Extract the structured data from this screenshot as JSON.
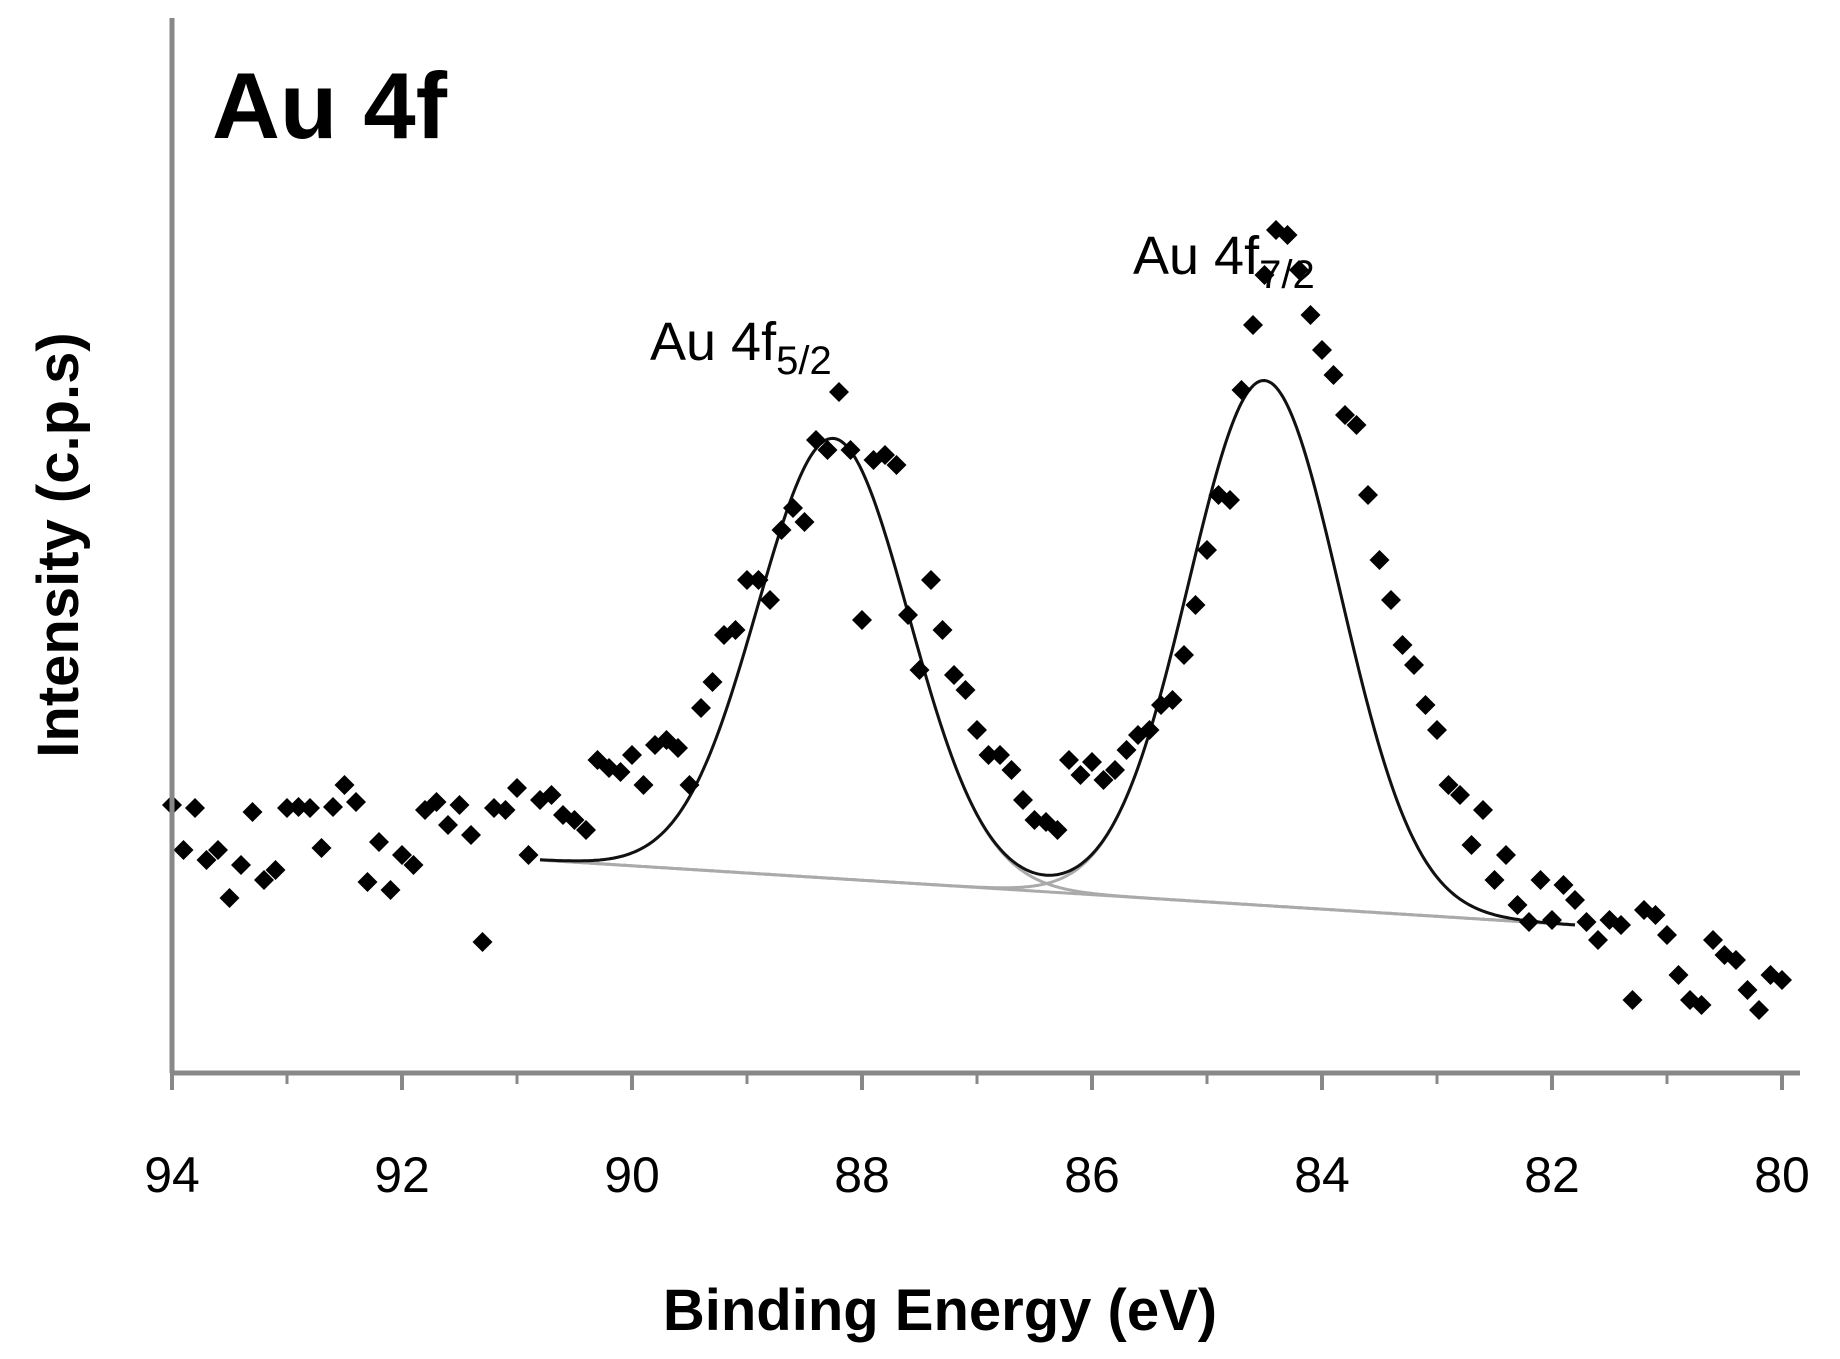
{
  "chart_data": {
    "type": "scatter",
    "title": "Au 4f",
    "xlabel": "Binding Energy (eV)",
    "ylabel": "Intensity (c.p.s)",
    "xlim": [
      94,
      80
    ],
    "x_reversed": true,
    "x_ticks": [
      "94",
      "92",
      "90",
      "88",
      "86",
      "84",
      "82",
      "80"
    ],
    "y_ticks_shown": false,
    "grid": false,
    "legend": "none",
    "annotations": [
      {
        "main": "Au 4f",
        "sub": "5/2",
        "x": 88.5,
        "y": 930
      },
      {
        "main": "Au 4f",
        "sub": "7/2",
        "x": 84.6,
        "y": 1015
      }
    ],
    "colors": {
      "points": "#000000",
      "envelope": "#111111",
      "components": "#aaaaaa",
      "axis": "#888888"
    },
    "scatter_points": [
      [
        94.0,
        225
      ],
      [
        93.9,
        180
      ],
      [
        93.8,
        222
      ],
      [
        93.7,
        170
      ],
      [
        93.6,
        180
      ],
      [
        93.5,
        132
      ],
      [
        93.4,
        165
      ],
      [
        93.3,
        218
      ],
      [
        93.2,
        150
      ],
      [
        93.1,
        160
      ],
      [
        93.0,
        222
      ],
      [
        92.9,
        223
      ],
      [
        92.8,
        222
      ],
      [
        92.7,
        182
      ],
      [
        92.6,
        223
      ],
      [
        92.5,
        245
      ],
      [
        92.4,
        228
      ],
      [
        92.3,
        148
      ],
      [
        92.2,
        188
      ],
      [
        92.1,
        140
      ],
      [
        92.0,
        175
      ],
      [
        91.9,
        165
      ],
      [
        91.8,
        220
      ],
      [
        91.7,
        228
      ],
      [
        91.6,
        205
      ],
      [
        91.5,
        225
      ],
      [
        91.4,
        195
      ],
      [
        91.3,
        88
      ],
      [
        91.2,
        222
      ],
      [
        91.1,
        220
      ],
      [
        91.0,
        242
      ],
      [
        90.9,
        175
      ],
      [
        90.8,
        230
      ],
      [
        90.7,
        235
      ],
      [
        90.6,
        215
      ],
      [
        90.5,
        210
      ],
      [
        90.4,
        200
      ],
      [
        90.3,
        270
      ],
      [
        90.2,
        262
      ],
      [
        90.1,
        258
      ],
      [
        90.0,
        275
      ],
      [
        89.9,
        245
      ],
      [
        89.8,
        285
      ],
      [
        89.7,
        290
      ],
      [
        89.6,
        282
      ],
      [
        89.5,
        245
      ],
      [
        89.4,
        322
      ],
      [
        89.3,
        348
      ],
      [
        89.2,
        395
      ],
      [
        89.1,
        400
      ],
      [
        89.0,
        450
      ],
      [
        88.9,
        450
      ],
      [
        88.8,
        430
      ],
      [
        88.7,
        500
      ],
      [
        88.6,
        522
      ],
      [
        88.5,
        508
      ],
      [
        88.4,
        590
      ],
      [
        88.3,
        580
      ],
      [
        88.2,
        638
      ],
      [
        88.1,
        580
      ],
      [
        88.0,
        410
      ],
      [
        87.9,
        570
      ],
      [
        87.8,
        575
      ],
      [
        87.7,
        565
      ],
      [
        87.6,
        415
      ],
      [
        87.5,
        360
      ],
      [
        87.4,
        450
      ],
      [
        87.3,
        400
      ],
      [
        87.2,
        355
      ],
      [
        87.1,
        340
      ],
      [
        87.0,
        300
      ],
      [
        86.9,
        275
      ],
      [
        86.8,
        275
      ],
      [
        86.7,
        260
      ],
      [
        86.6,
        230
      ],
      [
        86.5,
        210
      ],
      [
        86.4,
        208
      ],
      [
        86.3,
        200
      ],
      [
        86.2,
        270
      ],
      [
        86.1,
        255
      ],
      [
        86.0,
        268
      ],
      [
        85.9,
        250
      ],
      [
        85.8,
        260
      ],
      [
        85.7,
        280
      ],
      [
        85.6,
        295
      ],
      [
        85.5,
        300
      ],
      [
        85.4,
        325
      ],
      [
        85.3,
        330
      ],
      [
        85.2,
        375
      ],
      [
        85.1,
        425
      ],
      [
        85.0,
        480
      ],
      [
        84.9,
        535
      ],
      [
        84.8,
        530
      ],
      [
        84.7,
        640
      ],
      [
        84.6,
        705
      ],
      [
        84.5,
        755
      ],
      [
        84.4,
        800
      ],
      [
        84.3,
        795
      ],
      [
        84.2,
        760
      ],
      [
        84.1,
        715
      ],
      [
        84.0,
        680
      ],
      [
        83.9,
        655
      ],
      [
        83.8,
        615
      ],
      [
        83.7,
        605
      ],
      [
        83.6,
        535
      ],
      [
        83.5,
        470
      ],
      [
        83.4,
        430
      ],
      [
        83.3,
        385
      ],
      [
        83.2,
        365
      ],
      [
        83.1,
        325
      ],
      [
        83.0,
        300
      ],
      [
        82.9,
        245
      ],
      [
        82.8,
        235
      ],
      [
        82.7,
        185
      ],
      [
        82.6,
        220
      ],
      [
        82.5,
        150
      ],
      [
        82.4,
        175
      ],
      [
        82.3,
        125
      ],
      [
        82.2,
        108
      ],
      [
        82.1,
        150
      ],
      [
        82.0,
        110
      ],
      [
        81.9,
        145
      ],
      [
        81.8,
        130
      ],
      [
        81.7,
        108
      ],
      [
        81.6,
        90
      ],
      [
        81.5,
        110
      ],
      [
        81.4,
        105
      ],
      [
        81.3,
        30
      ],
      [
        81.2,
        120
      ],
      [
        81.1,
        115
      ],
      [
        81.0,
        95
      ],
      [
        80.9,
        55
      ],
      [
        80.8,
        30
      ],
      [
        80.7,
        25
      ],
      [
        80.6,
        90
      ],
      [
        80.5,
        75
      ],
      [
        80.4,
        70
      ],
      [
        80.3,
        40
      ],
      [
        80.2,
        20
      ],
      [
        80.1,
        55
      ],
      [
        80.0,
        50
      ]
    ],
    "fit": {
      "x_start": 90.8,
      "x_end": 81.8,
      "background_left": 170,
      "background_right": 105,
      "peak_5_2": {
        "center": 88.25,
        "height": 440,
        "fwhm": 1.55
      },
      "peak_7_2": {
        "center": 84.5,
        "height": 525,
        "fwhm": 1.55
      }
    }
  }
}
